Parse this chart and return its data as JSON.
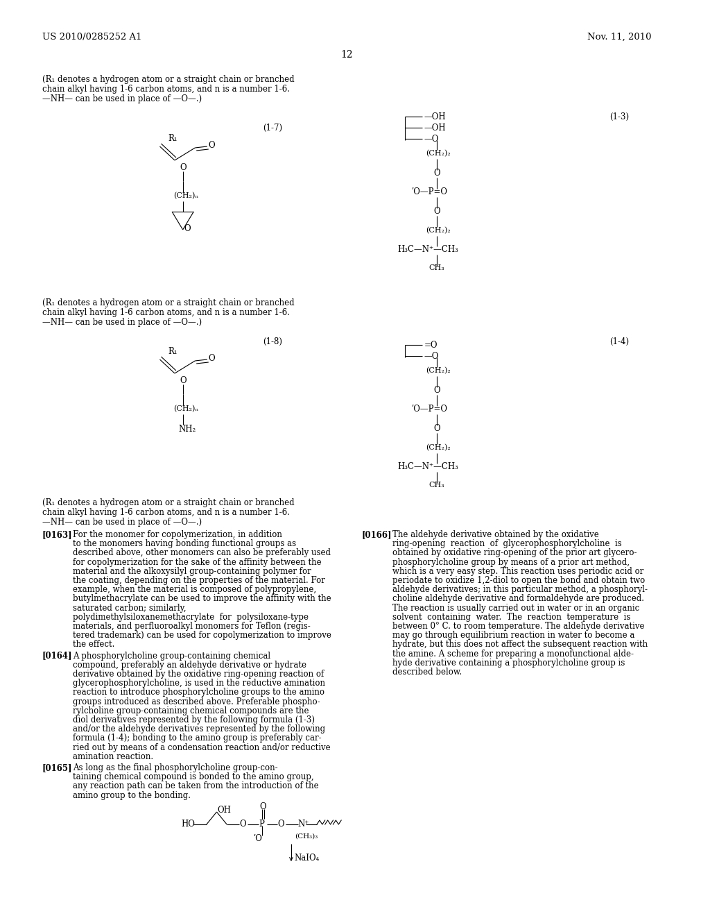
{
  "bg_color": "#ffffff",
  "header_left": "US 2010/0285252 A1",
  "header_right": "Nov. 11, 2010",
  "page_number": "12"
}
